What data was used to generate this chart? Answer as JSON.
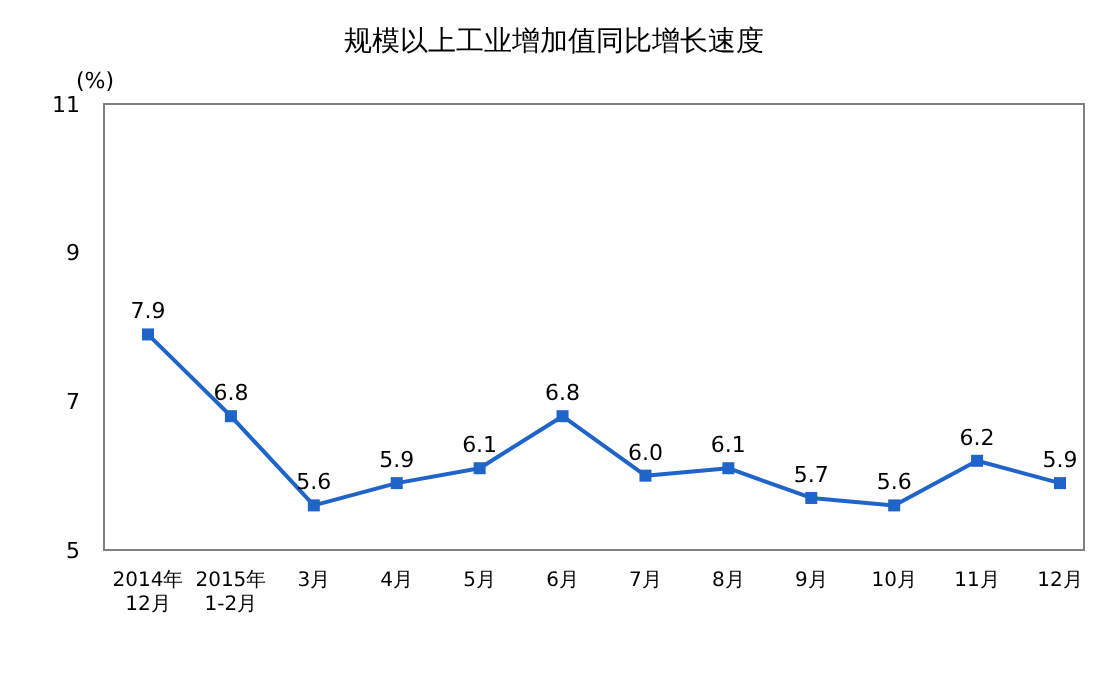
{
  "chart_data": {
    "type": "line",
    "title": "规模以上工业增加值同比增长速度",
    "ylabel": "(%)",
    "categories": [
      "2014年\n12月",
      "2015年\n1-2月",
      "3月",
      "4月",
      "5月",
      "6月",
      "7月",
      "8月",
      "9月",
      "10月",
      "11月",
      "12月"
    ],
    "series": [
      {
        "color": "#1f64c8",
        "values": [
          7.9,
          6.8,
          5.6,
          5.9,
          6.1,
          6.8,
          6.0,
          6.1,
          5.7,
          5.6,
          6.2,
          5.9
        ],
        "value_labels": [
          "7.9",
          "6.8",
          "5.6",
          "5.9",
          "6.1",
          "6.8",
          "6.0",
          "6.1",
          "5.7",
          "5.6",
          "6.2",
          "5.9"
        ]
      }
    ],
    "ylim": [
      5,
      11
    ],
    "yticks": [
      5,
      7,
      9,
      11
    ],
    "marker": "square",
    "grid": false
  }
}
